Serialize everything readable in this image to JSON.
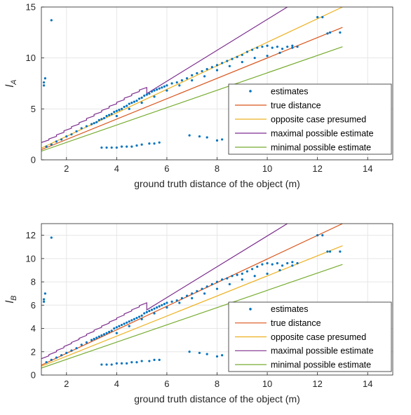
{
  "chart_data": [
    {
      "type": "scatter",
      "title": "",
      "xlabel": "ground truth distance of the object (m)",
      "ylabel": "l_A",
      "ylabel_main": "l",
      "ylabel_sub": "A",
      "xlim": [
        1,
        15
      ],
      "ylim": [
        0,
        15
      ],
      "xticks": [
        2,
        4,
        6,
        8,
        10,
        12,
        14
      ],
      "yticks": [
        0,
        5,
        10,
        15
      ],
      "grid": true,
      "legend_position": "lower-right",
      "legend": [
        "estimates",
        "true distance",
        "opposite case presumed",
        "maximal possible estimate",
        "minimal possible estimate"
      ],
      "series": [
        {
          "name": "estimates",
          "kind": "scatter",
          "color": "#0072BD",
          "x": [
            1.1,
            1.1,
            1.15,
            1.4,
            1.2,
            1.4,
            1.6,
            1.8,
            2.0,
            2.2,
            2.4,
            2.6,
            2.8,
            3.0,
            3.1,
            3.2,
            3.3,
            3.4,
            3.5,
            3.6,
            3.7,
            3.8,
            3.9,
            4.0,
            4.1,
            4.2,
            4.3,
            4.4,
            4.5,
            4.6,
            4.7,
            4.8,
            4.9,
            5.0,
            5.1,
            5.2,
            5.3,
            5.4,
            5.5,
            5.6,
            5.7,
            5.8,
            5.9,
            6.0,
            6.2,
            6.4,
            6.6,
            6.8,
            7.0,
            7.2,
            7.4,
            7.6,
            7.8,
            8.0,
            8.2,
            8.4,
            8.6,
            8.8,
            9.0,
            9.2,
            9.4,
            9.6,
            9.8,
            10.0,
            10.2,
            10.4,
            10.6,
            10.8,
            11.0,
            11.2,
            12.0,
            12.2,
            12.4,
            3.4,
            3.6,
            3.8,
            4.0,
            4.2,
            4.4,
            4.6,
            4.8,
            5.0,
            5.3,
            5.5,
            5.7,
            6.9,
            7.3,
            7.6,
            8.2,
            8.0,
            8.6,
            9.1,
            9.4,
            9.8,
            10.4,
            4.0,
            4.5,
            5.0,
            5.5,
            6.0,
            6.5,
            7.0,
            7.5,
            8.0,
            8.5,
            9.0,
            9.5,
            10.0,
            10.5,
            11.0,
            12.5,
            12.9
          ],
          "y": [
            7.3,
            7.6,
            8.0,
            13.7,
            1.3,
            1.5,
            1.8,
            2.0,
            2.3,
            2.5,
            2.8,
            3.1,
            3.3,
            3.5,
            3.6,
            3.7,
            3.9,
            4.0,
            4.1,
            4.3,
            4.4,
            4.5,
            4.7,
            4.8,
            4.9,
            5.0,
            5.2,
            5.3,
            5.5,
            5.6,
            5.7,
            5.8,
            6.0,
            6.1,
            6.3,
            6.4,
            6.5,
            6.7,
            6.8,
            6.9,
            7.0,
            7.1,
            7.2,
            7.3,
            7.5,
            7.6,
            7.8,
            8.0,
            8.3,
            8.5,
            8.7,
            8.9,
            9.1,
            9.3,
            9.5,
            9.7,
            9.9,
            10.1,
            10.3,
            10.6,
            10.8,
            11.0,
            11.1,
            11.2,
            11.0,
            11.1,
            10.9,
            11.1,
            11.2,
            11.1,
            14.0,
            14.0,
            12.4,
            1.2,
            1.2,
            1.2,
            1.2,
            1.3,
            1.3,
            1.3,
            1.4,
            1.5,
            1.6,
            1.6,
            1.7,
            2.4,
            2.3,
            2.2,
            2.0,
            1.9,
            2.1,
            2.0,
            2.0,
            2.0,
            2.0,
            4.3,
            5.0,
            5.6,
            6.2,
            6.8,
            7.3,
            7.8,
            8.2,
            8.8,
            9.2,
            9.6,
            10.0,
            10.2,
            10.5,
            11.0,
            12.5,
            12.5
          ]
        },
        {
          "name": "true distance",
          "kind": "line",
          "color": "#D95319",
          "x": [
            1,
            13
          ],
          "y": [
            1.0,
            13.0
          ]
        },
        {
          "name": "opposite case presumed",
          "kind": "line",
          "color": "#EDB120",
          "x": [
            1,
            13
          ],
          "y": [
            1.15,
            15.0
          ]
        },
        {
          "name": "maximal possible estimate",
          "kind": "line",
          "color": "#7E2F8E",
          "x": [
            1,
            1.3,
            1.3,
            1.6,
            1.6,
            1.9,
            1.9,
            2.2,
            2.2,
            2.5,
            2.5,
            2.8,
            2.8,
            3.1,
            3.1,
            3.4,
            3.4,
            3.7,
            3.7,
            4.0,
            4.0,
            4.3,
            4.3,
            4.6,
            4.6,
            4.9,
            4.9,
            5.2,
            5.2,
            10.8
          ],
          "y": [
            1.7,
            1.95,
            2.05,
            2.3,
            2.45,
            2.7,
            2.85,
            3.1,
            3.25,
            3.5,
            3.65,
            3.9,
            4.05,
            4.3,
            4.45,
            4.7,
            4.85,
            5.1,
            5.25,
            5.5,
            5.65,
            5.9,
            6.05,
            6.3,
            6.45,
            6.7,
            6.85,
            7.1,
            6.5,
            15.0
          ]
        },
        {
          "name": "minimal possible estimate",
          "kind": "line",
          "color": "#77AC30",
          "x": [
            1,
            13
          ],
          "y": [
            0.85,
            11.1
          ]
        }
      ]
    },
    {
      "type": "scatter",
      "title": "",
      "xlabel": "ground truth distance of the object (m)",
      "ylabel": "l_B",
      "ylabel_main": "l",
      "ylabel_sub": "B",
      "xlim": [
        1,
        15
      ],
      "ylim": [
        0,
        13
      ],
      "xticks": [
        2,
        4,
        6,
        8,
        10,
        12,
        14
      ],
      "yticks": [
        0,
        2,
        4,
        6,
        8,
        10,
        12
      ],
      "grid": true,
      "legend_position": "lower-right",
      "legend": [
        "estimates",
        "true distance",
        "opposite case presumed",
        "maximal possible estimate",
        "minimal possible estimate"
      ],
      "series": [
        {
          "name": "estimates",
          "kind": "scatter",
          "color": "#0072BD",
          "x": [
            1.1,
            1.1,
            1.15,
            1.4,
            1.2,
            1.4,
            1.6,
            1.8,
            2.0,
            2.2,
            2.4,
            2.6,
            2.8,
            3.0,
            3.1,
            3.2,
            3.3,
            3.4,
            3.5,
            3.6,
            3.7,
            3.8,
            3.9,
            4.0,
            4.1,
            4.2,
            4.3,
            4.4,
            4.5,
            4.6,
            4.7,
            4.8,
            4.9,
            5.0,
            5.1,
            5.2,
            5.3,
            5.4,
            5.5,
            5.6,
            5.7,
            5.8,
            5.9,
            6.0,
            6.2,
            6.4,
            6.6,
            6.8,
            7.0,
            7.2,
            7.4,
            7.6,
            7.8,
            8.0,
            8.2,
            8.4,
            8.6,
            8.8,
            9.0,
            9.2,
            9.4,
            9.6,
            9.8,
            10.0,
            10.2,
            10.4,
            10.6,
            10.8,
            11.0,
            11.2,
            12.0,
            12.2,
            12.4,
            3.4,
            3.6,
            3.8,
            4.0,
            4.2,
            4.4,
            4.6,
            4.8,
            5.0,
            5.3,
            5.5,
            5.7,
            6.9,
            7.3,
            7.6,
            8.2,
            8.0,
            8.6,
            9.1,
            9.4,
            9.8,
            10.4,
            4.0,
            4.5,
            5.0,
            5.5,
            6.0,
            6.5,
            7.0,
            7.5,
            8.0,
            8.5,
            9.0,
            9.5,
            10.0,
            10.5,
            11.0,
            12.5,
            12.9
          ],
          "y": [
            6.3,
            6.5,
            7.0,
            11.8,
            1.1,
            1.3,
            1.5,
            1.7,
            1.9,
            2.1,
            2.3,
            2.6,
            2.8,
            3.0,
            3.1,
            3.2,
            3.3,
            3.4,
            3.5,
            3.6,
            3.7,
            3.8,
            4.0,
            4.1,
            4.2,
            4.3,
            4.4,
            4.5,
            4.6,
            4.7,
            4.8,
            4.9,
            5.0,
            5.1,
            5.3,
            5.4,
            5.5,
            5.6,
            5.7,
            5.8,
            5.9,
            6.0,
            6.1,
            6.2,
            6.3,
            6.4,
            6.6,
            6.8,
            7.0,
            7.2,
            7.4,
            7.6,
            7.8,
            8.0,
            8.2,
            8.3,
            8.5,
            8.6,
            8.7,
            8.9,
            9.1,
            9.3,
            9.5,
            9.6,
            9.5,
            9.6,
            9.4,
            9.6,
            9.7,
            9.6,
            12.0,
            12.0,
            10.6,
            0.9,
            0.9,
            0.9,
            1.0,
            1.0,
            1.0,
            1.1,
            1.1,
            1.2,
            1.2,
            1.3,
            1.3,
            2.0,
            1.9,
            1.8,
            1.7,
            1.6,
            1.8,
            1.7,
            1.7,
            1.7,
            1.7,
            3.6,
            4.2,
            4.8,
            5.3,
            5.8,
            6.2,
            6.6,
            7.0,
            7.4,
            7.8,
            8.2,
            8.5,
            8.7,
            9.0,
            9.4,
            10.6,
            10.6
          ]
        },
        {
          "name": "true distance",
          "kind": "line",
          "color": "#D95319",
          "x": [
            1,
            13
          ],
          "y": [
            0.85,
            13.0
          ]
        },
        {
          "name": "opposite case presumed",
          "kind": "line",
          "color": "#EDB120",
          "x": [
            1,
            13
          ],
          "y": [
            0.75,
            11.1
          ]
        },
        {
          "name": "maximal possible estimate",
          "kind": "line",
          "color": "#7E2F8E",
          "x": [
            1,
            1.3,
            1.3,
            1.6,
            1.6,
            1.9,
            1.9,
            2.2,
            2.2,
            2.5,
            2.5,
            2.8,
            2.8,
            3.1,
            3.1,
            3.4,
            3.4,
            3.7,
            3.7,
            4.0,
            4.0,
            4.3,
            4.3,
            4.6,
            4.6,
            4.9,
            4.9,
            5.2,
            5.2,
            10.8
          ],
          "y": [
            1.4,
            1.65,
            1.75,
            2.0,
            2.1,
            2.35,
            2.45,
            2.7,
            2.8,
            3.05,
            3.15,
            3.4,
            3.5,
            3.75,
            3.85,
            4.1,
            4.2,
            4.45,
            4.55,
            4.8,
            4.9,
            5.15,
            5.25,
            5.5,
            5.6,
            5.85,
            5.95,
            6.2,
            5.6,
            13.0
          ]
        },
        {
          "name": "minimal possible estimate",
          "kind": "line",
          "color": "#77AC30",
          "x": [
            1,
            13
          ],
          "y": [
            0.6,
            9.5
          ]
        }
      ]
    }
  ]
}
